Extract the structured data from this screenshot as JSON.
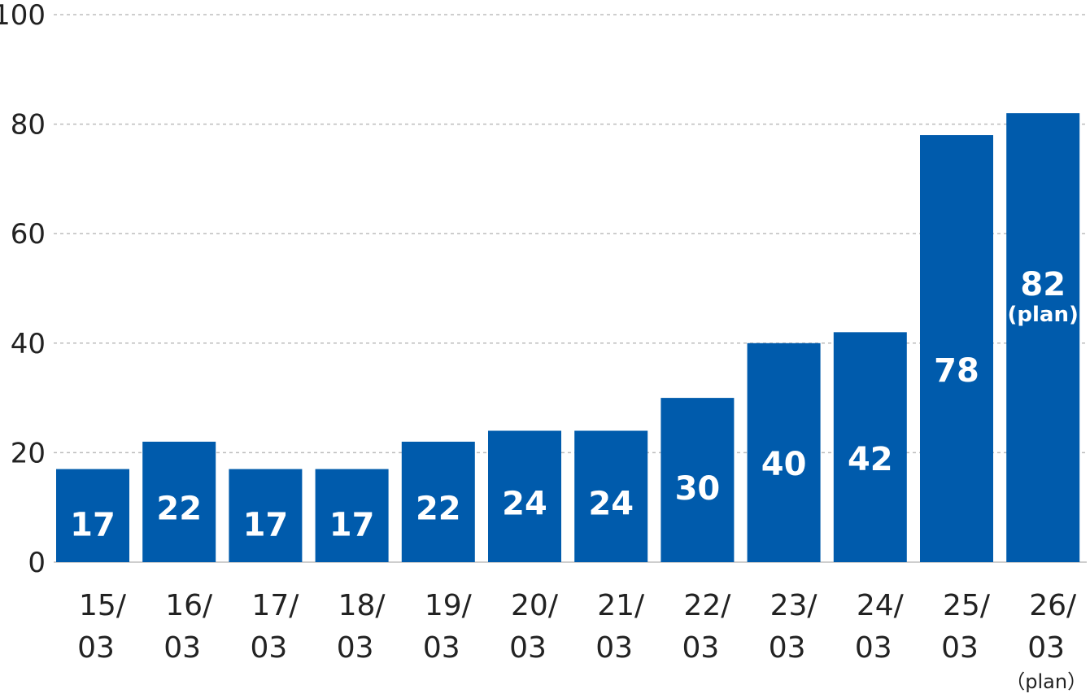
{
  "chart_data": {
    "type": "bar",
    "categories": [
      [
        "15/",
        "03"
      ],
      [
        "16/",
        "03"
      ],
      [
        "17/",
        "03"
      ],
      [
        "18/",
        "03"
      ],
      [
        "19/",
        "03"
      ],
      [
        "20/",
        "03"
      ],
      [
        "21/",
        "03"
      ],
      [
        "22/",
        "03"
      ],
      [
        "23/",
        "03"
      ],
      [
        "24/",
        "03"
      ],
      [
        "25/",
        "03"
      ],
      [
        "26/",
        "03"
      ]
    ],
    "values": [
      17,
      22,
      17,
      17,
      22,
      24,
      24,
      30,
      40,
      42,
      78,
      82
    ],
    "value_labels": [
      "17",
      "22",
      "17",
      "17",
      "22",
      "24",
      "24",
      "30",
      "40",
      "42",
      "78",
      "82"
    ],
    "plan_marker": "（plan）",
    "plan_value_marker": "(plan)",
    "plan_index": 11,
    "yticks": [
      "0",
      "20",
      "40",
      "60",
      "80",
      "100"
    ],
    "ytick_values": [
      0,
      20,
      40,
      60,
      80,
      100
    ],
    "ylim": [
      0,
      100
    ],
    "grid": true,
    "bar_color": "#005BAC",
    "title": "",
    "xlabel": "",
    "ylabel": ""
  }
}
